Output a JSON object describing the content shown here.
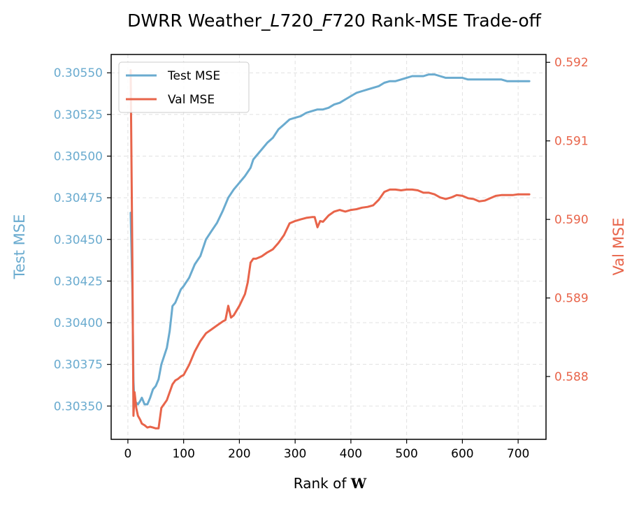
{
  "chart_data": {
    "type": "line",
    "title_parts": [
      "DWRR Weather_",
      "L",
      "720_",
      "F",
      "720 Rank-MSE Trade-off"
    ],
    "xlabel_parts": [
      "Rank of ",
      "W"
    ],
    "ylabel_left": "Test MSE",
    "ylabel_right": "Val MSE",
    "xlim": [
      -30,
      750
    ],
    "ylim_left": [
      0.3033,
      0.30561
    ],
    "ylim_right": [
      0.5872,
      0.5921
    ],
    "xticks": [
      0,
      100,
      200,
      300,
      400,
      500,
      600,
      700
    ],
    "xtick_labels": [
      "0",
      "100",
      "200",
      "300",
      "400",
      "500",
      "600",
      "700"
    ],
    "yticks_left": [
      0.3035,
      0.30375,
      0.304,
      0.30425,
      0.3045,
      0.30475,
      0.305,
      0.30525,
      0.3055
    ],
    "ytick_labels_left": [
      "0.30350",
      "0.30375",
      "0.30400",
      "0.30425",
      "0.30450",
      "0.30475",
      "0.30500",
      "0.30525",
      "0.30550"
    ],
    "yticks_right": [
      0.588,
      0.589,
      0.59,
      0.591,
      0.592
    ],
    "ytick_labels_right": [
      "0.588",
      "0.589",
      "0.590",
      "0.591",
      "0.592"
    ],
    "grid": true,
    "legend_position": "upper-left",
    "series": [
      {
        "name": "Test MSE",
        "axis": "left",
        "color": "#6aabcf",
        "points": [
          [
            5,
            0.30466
          ],
          [
            8,
            0.3042
          ],
          [
            10,
            0.30365
          ],
          [
            12,
            0.3035
          ],
          [
            15,
            0.30352
          ],
          [
            18,
            0.30351
          ],
          [
            22,
            0.30353
          ],
          [
            25,
            0.30355
          ],
          [
            30,
            0.30351
          ],
          [
            35,
            0.30351
          ],
          [
            40,
            0.30355
          ],
          [
            45,
            0.3036
          ],
          [
            50,
            0.30362
          ],
          [
            55,
            0.30366
          ],
          [
            60,
            0.30375
          ],
          [
            65,
            0.3038
          ],
          [
            70,
            0.30385
          ],
          [
            75,
            0.30395
          ],
          [
            80,
            0.3041
          ],
          [
            85,
            0.30412
          ],
          [
            90,
            0.30416
          ],
          [
            95,
            0.3042
          ],
          [
            100,
            0.30422
          ],
          [
            110,
            0.30427
          ],
          [
            120,
            0.30435
          ],
          [
            130,
            0.3044
          ],
          [
            140,
            0.3045
          ],
          [
            150,
            0.30455
          ],
          [
            160,
            0.3046
          ],
          [
            170,
            0.30467
          ],
          [
            180,
            0.30475
          ],
          [
            190,
            0.3048
          ],
          [
            200,
            0.30484
          ],
          [
            210,
            0.30488
          ],
          [
            220,
            0.30493
          ],
          [
            225,
            0.30498
          ],
          [
            230,
            0.305
          ],
          [
            240,
            0.30504
          ],
          [
            250,
            0.30508
          ],
          [
            260,
            0.30511
          ],
          [
            270,
            0.30516
          ],
          [
            280,
            0.30519
          ],
          [
            290,
            0.30522
          ],
          [
            300,
            0.30523
          ],
          [
            310,
            0.30524
          ],
          [
            320,
            0.30526
          ],
          [
            330,
            0.30527
          ],
          [
            340,
            0.30528
          ],
          [
            350,
            0.30528
          ],
          [
            360,
            0.30529
          ],
          [
            370,
            0.30531
          ],
          [
            380,
            0.30532
          ],
          [
            390,
            0.30534
          ],
          [
            400,
            0.30536
          ],
          [
            410,
            0.30538
          ],
          [
            420,
            0.30539
          ],
          [
            430,
            0.3054
          ],
          [
            440,
            0.30541
          ],
          [
            450,
            0.30542
          ],
          [
            460,
            0.30544
          ],
          [
            470,
            0.30545
          ],
          [
            480,
            0.30545
          ],
          [
            490,
            0.30546
          ],
          [
            500,
            0.30547
          ],
          [
            510,
            0.30548
          ],
          [
            520,
            0.30548
          ],
          [
            530,
            0.30548
          ],
          [
            540,
            0.30549
          ],
          [
            550,
            0.30549
          ],
          [
            560,
            0.30548
          ],
          [
            570,
            0.30547
          ],
          [
            580,
            0.30547
          ],
          [
            590,
            0.30547
          ],
          [
            600,
            0.30547
          ],
          [
            610,
            0.30546
          ],
          [
            620,
            0.30546
          ],
          [
            630,
            0.30546
          ],
          [
            640,
            0.30546
          ],
          [
            650,
            0.30546
          ],
          [
            660,
            0.30546
          ],
          [
            670,
            0.30546
          ],
          [
            680,
            0.30545
          ],
          [
            690,
            0.30545
          ],
          [
            700,
            0.30545
          ],
          [
            710,
            0.30545
          ],
          [
            720,
            0.30545
          ]
        ]
      },
      {
        "name": "Val MSE",
        "axis": "right",
        "color": "#e8644a",
        "points": [
          [
            5,
            0.5919
          ],
          [
            8,
            0.5895
          ],
          [
            10,
            0.5875
          ],
          [
            12,
            0.5878
          ],
          [
            15,
            0.5876
          ],
          [
            18,
            0.5875
          ],
          [
            22,
            0.58745
          ],
          [
            25,
            0.5874
          ],
          [
            30,
            0.58738
          ],
          [
            35,
            0.58735
          ],
          [
            40,
            0.58736
          ],
          [
            45,
            0.58735
          ],
          [
            50,
            0.58734
          ],
          [
            55,
            0.58734
          ],
          [
            60,
            0.5876
          ],
          [
            65,
            0.58765
          ],
          [
            70,
            0.5877
          ],
          [
            75,
            0.5878
          ],
          [
            80,
            0.5879
          ],
          [
            85,
            0.58795
          ],
          [
            90,
            0.58797
          ],
          [
            95,
            0.588
          ],
          [
            100,
            0.58802
          ],
          [
            110,
            0.58815
          ],
          [
            120,
            0.58832
          ],
          [
            130,
            0.58845
          ],
          [
            140,
            0.58855
          ],
          [
            150,
            0.5886
          ],
          [
            160,
            0.58865
          ],
          [
            170,
            0.5887
          ],
          [
            175,
            0.58872
          ],
          [
            180,
            0.5889
          ],
          [
            185,
            0.58875
          ],
          [
            190,
            0.58878
          ],
          [
            200,
            0.5889
          ],
          [
            210,
            0.58905
          ],
          [
            215,
            0.5892
          ],
          [
            220,
            0.58945
          ],
          [
            225,
            0.5895
          ],
          [
            230,
            0.5895
          ],
          [
            240,
            0.58953
          ],
          [
            250,
            0.58958
          ],
          [
            260,
            0.58962
          ],
          [
            270,
            0.5897
          ],
          [
            280,
            0.5898
          ],
          [
            290,
            0.58995
          ],
          [
            300,
            0.58998
          ],
          [
            310,
            0.59
          ],
          [
            320,
            0.59002
          ],
          [
            330,
            0.59003
          ],
          [
            335,
            0.59003
          ],
          [
            340,
            0.5899
          ],
          [
            345,
            0.58998
          ],
          [
            350,
            0.58997
          ],
          [
            360,
            0.59005
          ],
          [
            370,
            0.5901
          ],
          [
            380,
            0.59012
          ],
          [
            390,
            0.5901
          ],
          [
            400,
            0.59012
          ],
          [
            410,
            0.59013
          ],
          [
            420,
            0.59015
          ],
          [
            430,
            0.59016
          ],
          [
            440,
            0.59018
          ],
          [
            450,
            0.59025
          ],
          [
            460,
            0.59035
          ],
          [
            470,
            0.59038
          ],
          [
            480,
            0.59038
          ],
          [
            490,
            0.59037
          ],
          [
            500,
            0.59038
          ],
          [
            510,
            0.59038
          ],
          [
            520,
            0.59037
          ],
          [
            530,
            0.59034
          ],
          [
            540,
            0.59034
          ],
          [
            550,
            0.59032
          ],
          [
            560,
            0.59028
          ],
          [
            570,
            0.59026
          ],
          [
            580,
            0.59028
          ],
          [
            590,
            0.59031
          ],
          [
            600,
            0.5903
          ],
          [
            610,
            0.59027
          ],
          [
            620,
            0.59026
          ],
          [
            630,
            0.59023
          ],
          [
            640,
            0.59024
          ],
          [
            650,
            0.59027
          ],
          [
            660,
            0.5903
          ],
          [
            670,
            0.59031
          ],
          [
            680,
            0.59031
          ],
          [
            690,
            0.59031
          ],
          [
            700,
            0.59032
          ],
          [
            710,
            0.59032
          ],
          [
            720,
            0.59032
          ]
        ]
      }
    ]
  }
}
